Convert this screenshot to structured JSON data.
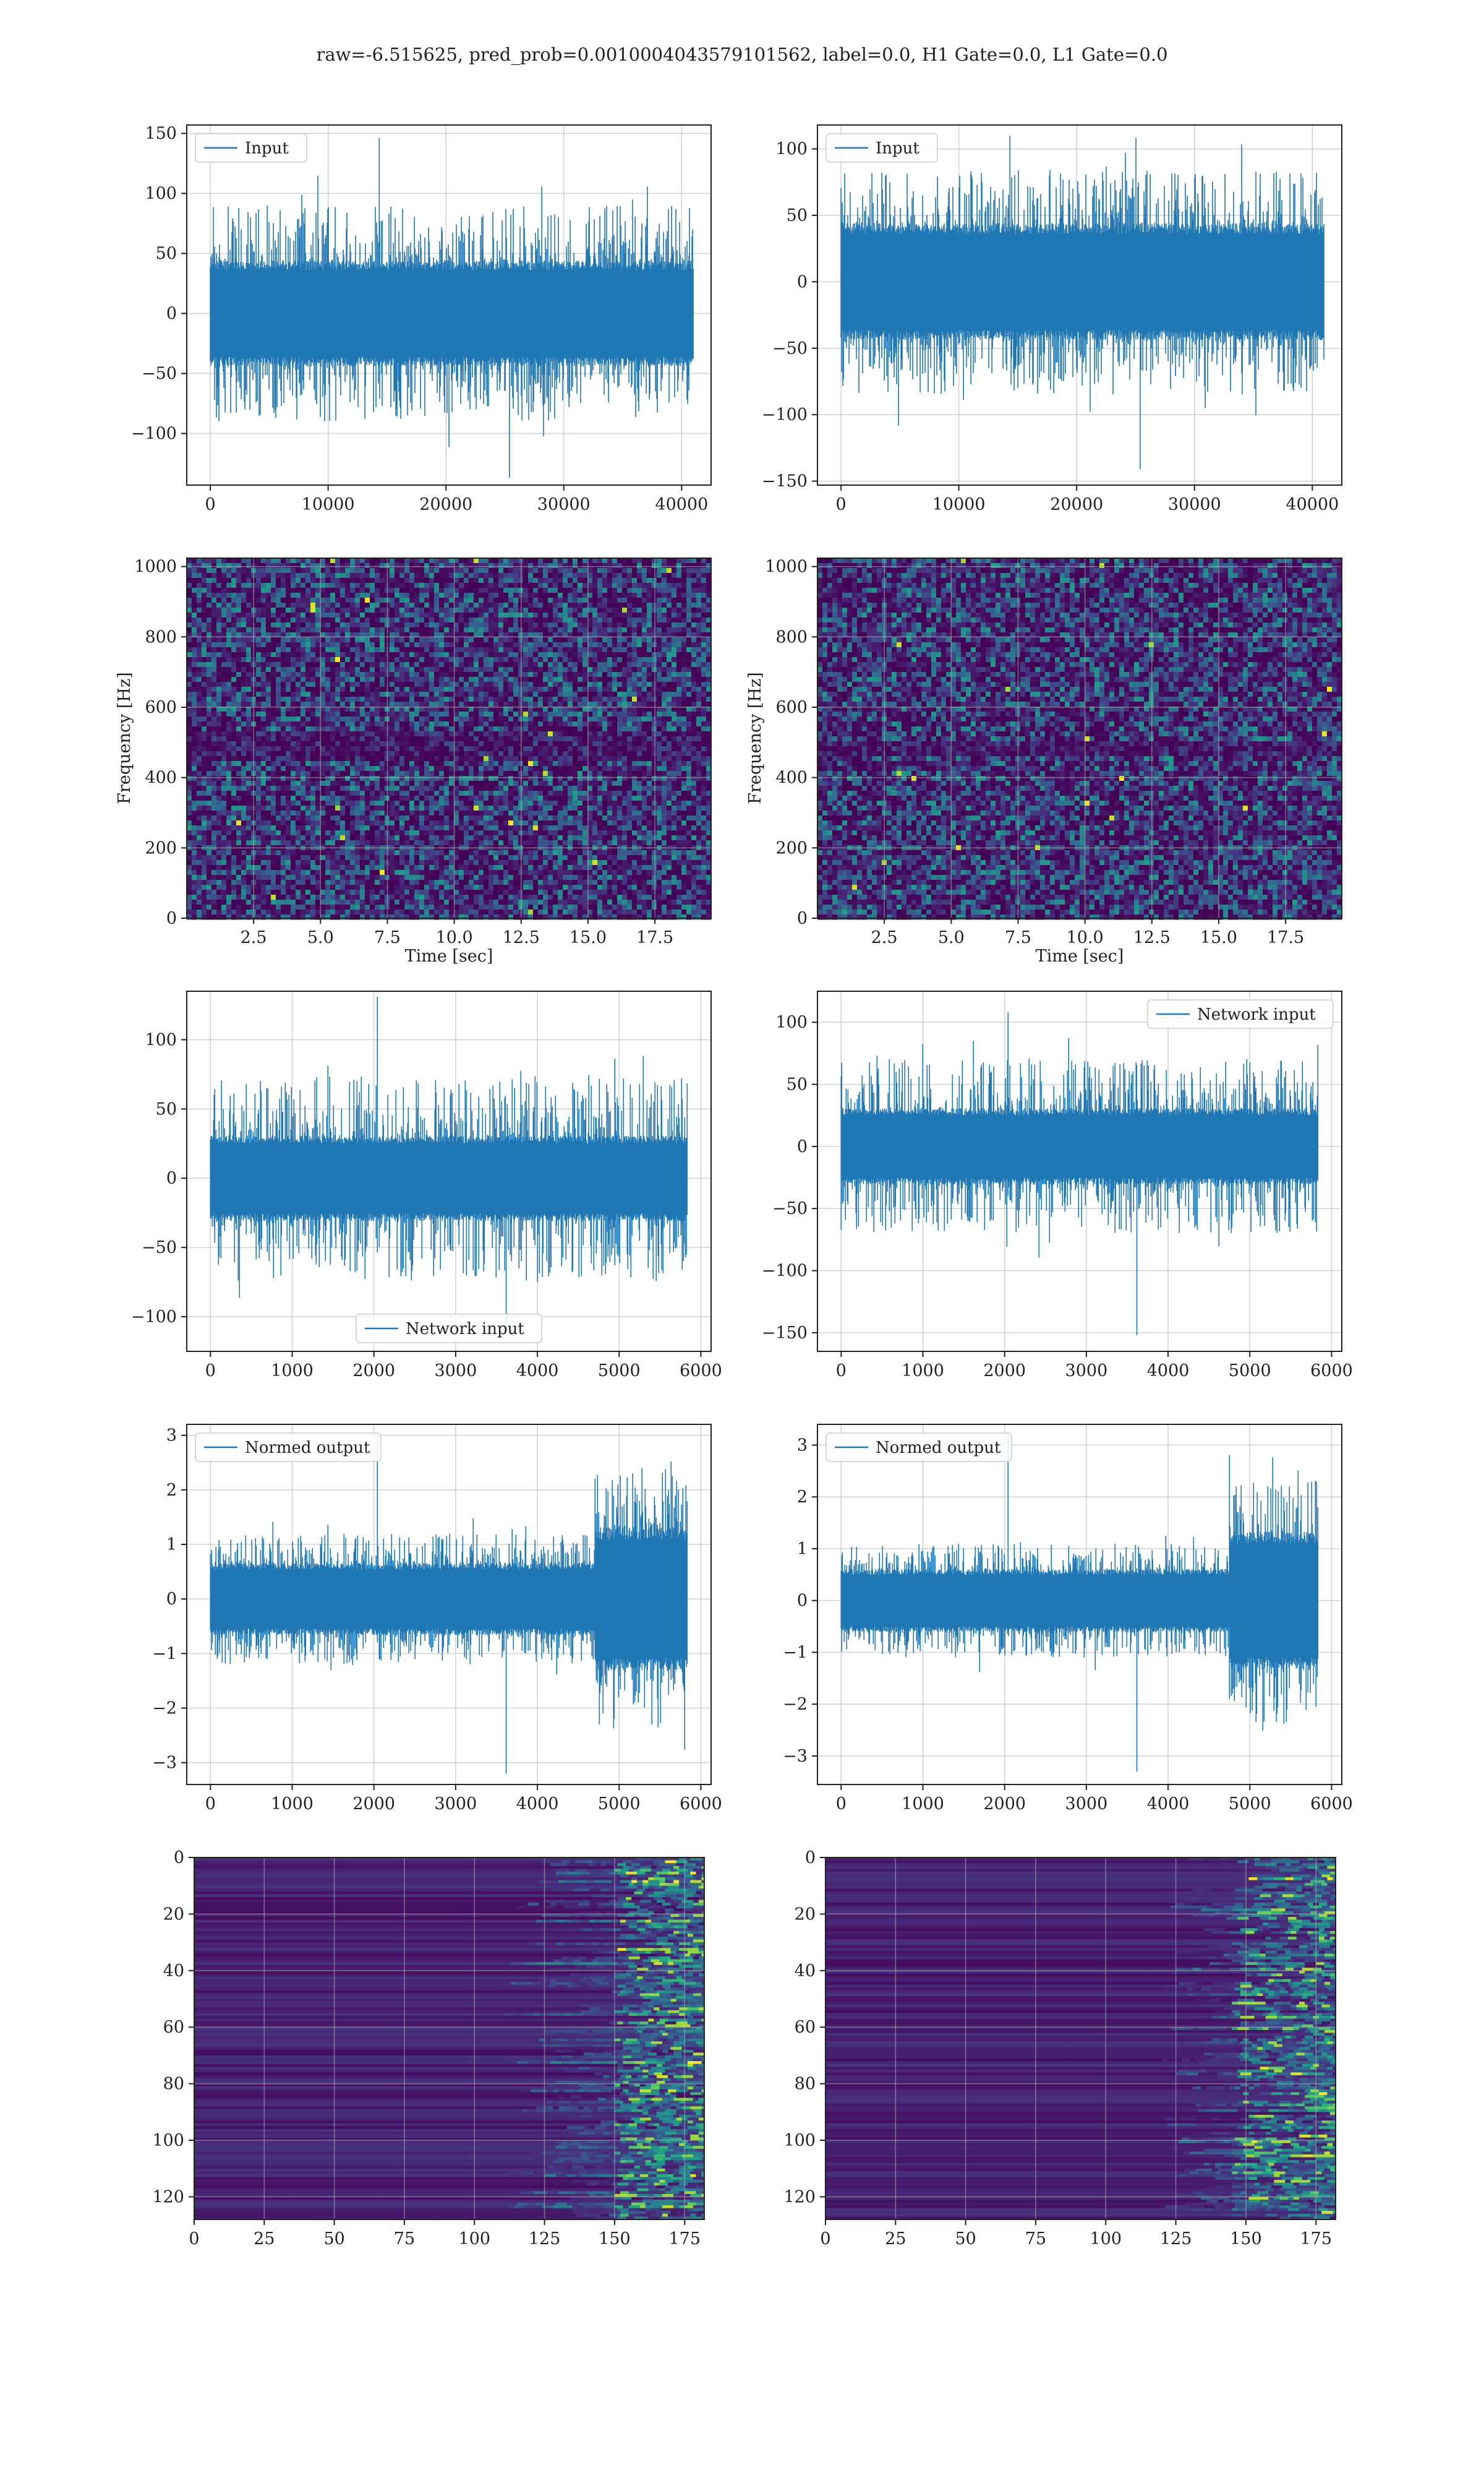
{
  "figure": {
    "suptitle": "raw=-6.515625, pred_prob=0.0010004043579101562, label=0.0, H1 Gate=0.0, L1 Gate=0.0",
    "series_color": "#1f77b4"
  },
  "chart_data": [
    {
      "id": "input-h1",
      "type": "line",
      "legend": "Input",
      "legend_loc": "upper-left",
      "xlim": [
        -2000,
        42500
      ],
      "ylim": [
        -143,
        157
      ],
      "xticks": [
        0,
        10000,
        20000,
        30000,
        40000
      ],
      "yticks": [
        -100,
        -50,
        0,
        50,
        100,
        150
      ],
      "grid": true,
      "series": [
        {
          "length": 40960,
          "envelope": {
            "core_low": -40,
            "core_high": 40,
            "typical_peak": 90,
            "max": 146,
            "min": -137,
            "noise": "stationary"
          }
        }
      ]
    },
    {
      "id": "input-l1",
      "type": "line",
      "legend": "Input",
      "legend_loc": "upper-left",
      "xlim": [
        -2000,
        42500
      ],
      "ylim": [
        -153,
        118
      ],
      "xticks": [
        0,
        10000,
        20000,
        30000,
        40000
      ],
      "yticks": [
        -150,
        -100,
        -50,
        0,
        50,
        100
      ],
      "grid": true,
      "series": [
        {
          "length": 40960,
          "envelope": {
            "core_low": -40,
            "core_high": 40,
            "typical_peak": 85,
            "max": 110,
            "min": -141,
            "noise": "stationary"
          }
        }
      ]
    },
    {
      "id": "spectrogram-h1",
      "type": "heatmap",
      "colormap": "viridis",
      "xlabel": "Time [sec]",
      "ylabel": "Frequency [Hz]",
      "xlim": [
        0,
        19.6
      ],
      "ylim": [
        0,
        1024
      ],
      "xticks": [
        2.5,
        5.0,
        7.5,
        10.0,
        12.5,
        15.0,
        17.5
      ],
      "xtick_labels": [
        "2.5",
        "5.0",
        "7.5",
        "10.0",
        "12.5",
        "15.0",
        "17.5"
      ],
      "yticks": [
        0,
        200,
        400,
        600,
        800,
        1000
      ],
      "grid": true,
      "texture": "random noise",
      "dark_bands_hz": [
        475,
        520
      ]
    },
    {
      "id": "spectrogram-l1",
      "type": "heatmap",
      "colormap": "viridis",
      "xlabel": "Time [sec]",
      "ylabel": "Frequency [Hz]",
      "xlim": [
        0,
        19.6
      ],
      "ylim": [
        0,
        1024
      ],
      "xticks": [
        2.5,
        5.0,
        7.5,
        10.0,
        12.5,
        15.0,
        17.5
      ],
      "xtick_labels": [
        "2.5",
        "5.0",
        "7.5",
        "10.0",
        "12.5",
        "15.0",
        "17.5"
      ],
      "yticks": [
        0,
        200,
        400,
        600,
        800,
        1000
      ],
      "grid": true,
      "texture": "random noise",
      "dark_bands_hz": [
        490
      ]
    },
    {
      "id": "network-input-h1",
      "type": "line",
      "legend": "Network input",
      "legend_loc": "lower-center",
      "xlim": [
        -290,
        6125
      ],
      "ylim": [
        -125,
        135
      ],
      "xticks": [
        0,
        1000,
        2000,
        3000,
        4000,
        5000,
        6000
      ],
      "yticks": [
        -100,
        -50,
        0,
        50,
        100
      ],
      "grid": true,
      "series": [
        {
          "length": 5835,
          "envelope": {
            "core_low": -28,
            "core_high": 28,
            "typical_peak": 75,
            "max": 131,
            "min": -114,
            "noise": "stationary"
          }
        }
      ]
    },
    {
      "id": "network-input-l1",
      "type": "line",
      "legend": "Network input",
      "legend_loc": "upper-right",
      "xlim": [
        -290,
        6125
      ],
      "ylim": [
        -165,
        125
      ],
      "xticks": [
        0,
        1000,
        2000,
        3000,
        4000,
        5000,
        6000
      ],
      "yticks": [
        -150,
        -100,
        -50,
        0,
        50,
        100
      ],
      "grid": true,
      "series": [
        {
          "length": 5835,
          "envelope": {
            "core_low": -28,
            "core_high": 28,
            "typical_peak": 70,
            "max": 108,
            "min": -152,
            "noise": "stationary"
          }
        }
      ]
    },
    {
      "id": "normed-output-h1",
      "type": "line",
      "legend": "Normed output",
      "legend_loc": "upper-left",
      "xlim": [
        -290,
        6125
      ],
      "ylim": [
        -3.4,
        3.2
      ],
      "xticks": [
        0,
        1000,
        2000,
        3000,
        4000,
        5000,
        6000
      ],
      "yticks": [
        -3,
        -2,
        -1,
        0,
        1,
        2,
        3
      ],
      "grid": true,
      "series": [
        {
          "length": 5835,
          "envelope": {
            "core_low": -0.6,
            "core_high": 0.6,
            "typical_peak": 1.2,
            "max": 2.9,
            "min": -3.2,
            "burst_start": 4700,
            "burst_scale": 2.0
          }
        }
      ]
    },
    {
      "id": "normed-output-l1",
      "type": "line",
      "legend": "Normed output",
      "legend_loc": "upper-left",
      "xlim": [
        -290,
        6125
      ],
      "ylim": [
        -3.55,
        3.4
      ],
      "xticks": [
        0,
        1000,
        2000,
        3000,
        4000,
        5000,
        6000
      ],
      "yticks": [
        -3,
        -2,
        -1,
        0,
        1,
        2,
        3
      ],
      "grid": true,
      "series": [
        {
          "length": 5835,
          "envelope": {
            "core_low": -0.55,
            "core_high": 0.55,
            "typical_peak": 1.1,
            "max": 3.2,
            "min": -3.3,
            "burst_start": 4750,
            "burst_scale": 2.2
          }
        }
      ]
    },
    {
      "id": "feature-map-h1",
      "type": "heatmap",
      "colormap": "viridis",
      "xlim": [
        0,
        182
      ],
      "ylim": [
        128,
        0
      ],
      "xticks": [
        0,
        25,
        50,
        75,
        100,
        125,
        150,
        175
      ],
      "yticks": [
        0,
        20,
        40,
        60,
        80,
        100,
        120
      ],
      "grid": true,
      "texture": "row stripes",
      "activity_onset": 110,
      "strong_onset": 150
    },
    {
      "id": "feature-map-l1",
      "type": "heatmap",
      "colormap": "viridis",
      "xlim": [
        0,
        182
      ],
      "ylim": [
        128,
        0
      ],
      "xticks": [
        0,
        25,
        50,
        75,
        100,
        125,
        150,
        175
      ],
      "yticks": [
        0,
        20,
        40,
        60,
        80,
        100,
        120
      ],
      "grid": true,
      "texture": "row stripes",
      "activity_onset": 120,
      "strong_onset": 145
    }
  ]
}
